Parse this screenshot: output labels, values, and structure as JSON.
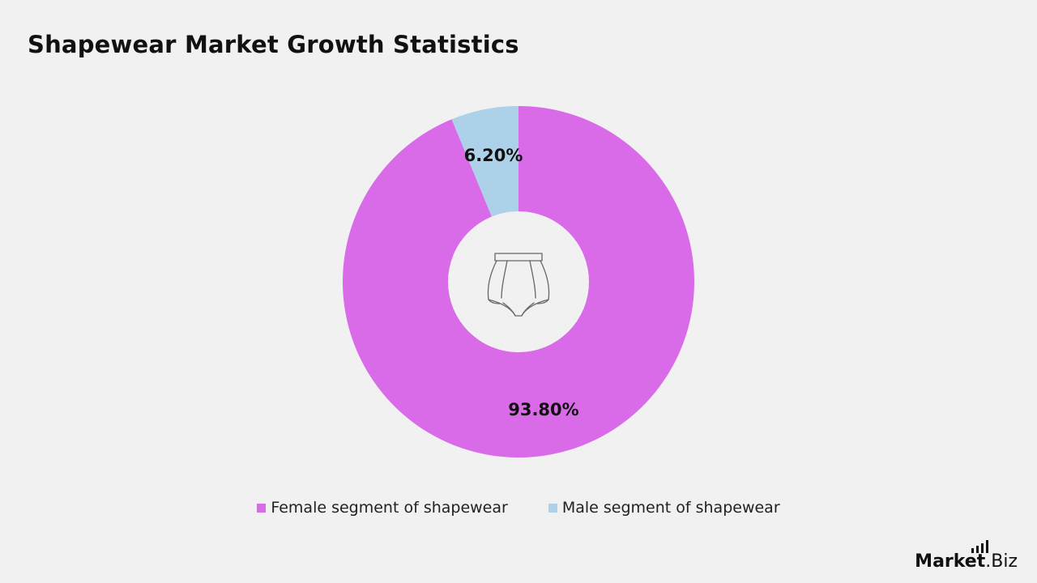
{
  "title": "Shapewear Market Growth Statistics",
  "chart_data": {
    "type": "pie",
    "title": "Shapewear Market Growth Statistics",
    "donut": true,
    "center_icon": "shapewear-briefs-icon",
    "slices": [
      {
        "name": "Female segment of shapewear",
        "value": 93.8,
        "label": "93.80%",
        "color": "#d96be9"
      },
      {
        "name": "Male segment of shapewear",
        "value": 6.2,
        "label": "6.20%",
        "color": "#aed1ea"
      }
    ],
    "legend_placement": "bottom"
  },
  "legend": [
    {
      "label": "Female segment of shapewear",
      "color": "#d96be9"
    },
    {
      "label": "Male segment of shapewear",
      "color": "#aed1ea"
    }
  ],
  "brand": {
    "part1": "Market",
    "part2": ".Biz"
  }
}
